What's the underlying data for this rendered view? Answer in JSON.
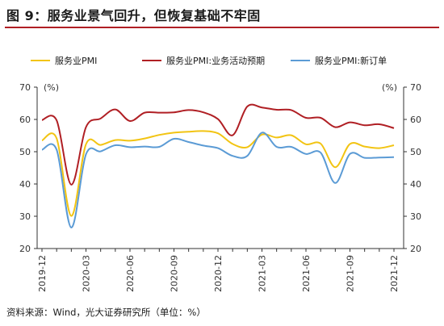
{
  "header": {
    "title": "图 9：服务业景气回升，但恢复基础不牢固"
  },
  "footer": {
    "source": "资料来源：Wind，光大证券研究所（单位：%）"
  },
  "chart_data": {
    "type": "line",
    "x": [
      "2019-12",
      "2020-01",
      "2020-02",
      "2020-03",
      "2020-04",
      "2020-05",
      "2020-06",
      "2020-07",
      "2020-08",
      "2020-09",
      "2020-10",
      "2020-11",
      "2020-12",
      "2021-01",
      "2021-02",
      "2021-03",
      "2021-04",
      "2021-05",
      "2021-06",
      "2021-07",
      "2021-08",
      "2021-09",
      "2021-10",
      "2021-11",
      "2021-12"
    ],
    "xticks": [
      "2019-12",
      "2020-03",
      "2020-06",
      "2020-09",
      "2020-12",
      "2021-03",
      "2021-06",
      "2021-09",
      "2021-12"
    ],
    "ylim": [
      20,
      70
    ],
    "yticks": [
      20,
      30,
      40,
      50,
      60,
      70
    ],
    "left_unit": "(%)",
    "right_unit": "(%)",
    "grid": false,
    "legend_position": "top",
    "series": [
      {
        "name": "服务业PMI",
        "color": "#f2c413",
        "values": [
          53.5,
          54.1,
          30.1,
          52.3,
          52.1,
          53.6,
          53.4,
          54.1,
          55.2,
          55.9,
          56.2,
          56.4,
          55.7,
          52.4,
          51.4,
          55.3,
          54.4,
          55.1,
          52.3,
          52.5,
          45.2,
          52.4,
          51.6,
          51.1,
          52.0
        ]
      },
      {
        "name": "服务业PMI:业务活动预期",
        "color": "#b01f24",
        "values": [
          59.8,
          59.7,
          39.8,
          57.6,
          60.3,
          63.1,
          59.5,
          62.1,
          62.1,
          62.2,
          62.9,
          62.2,
          60.1,
          55.1,
          64.0,
          63.7,
          63.0,
          62.9,
          60.5,
          60.5,
          57.6,
          59.1,
          58.2,
          58.5,
          57.3
        ]
      },
      {
        "name": "服务业PMI:新订单",
        "color": "#5b9bd5",
        "values": [
          50.6,
          50.6,
          26.5,
          49.2,
          50.1,
          52.0,
          51.4,
          51.6,
          51.5,
          54.0,
          53.0,
          51.9,
          51.1,
          48.7,
          48.7,
          55.9,
          51.5,
          51.5,
          49.3,
          49.7,
          40.3,
          49.3,
          48.1,
          48.2,
          48.3
        ]
      }
    ]
  }
}
